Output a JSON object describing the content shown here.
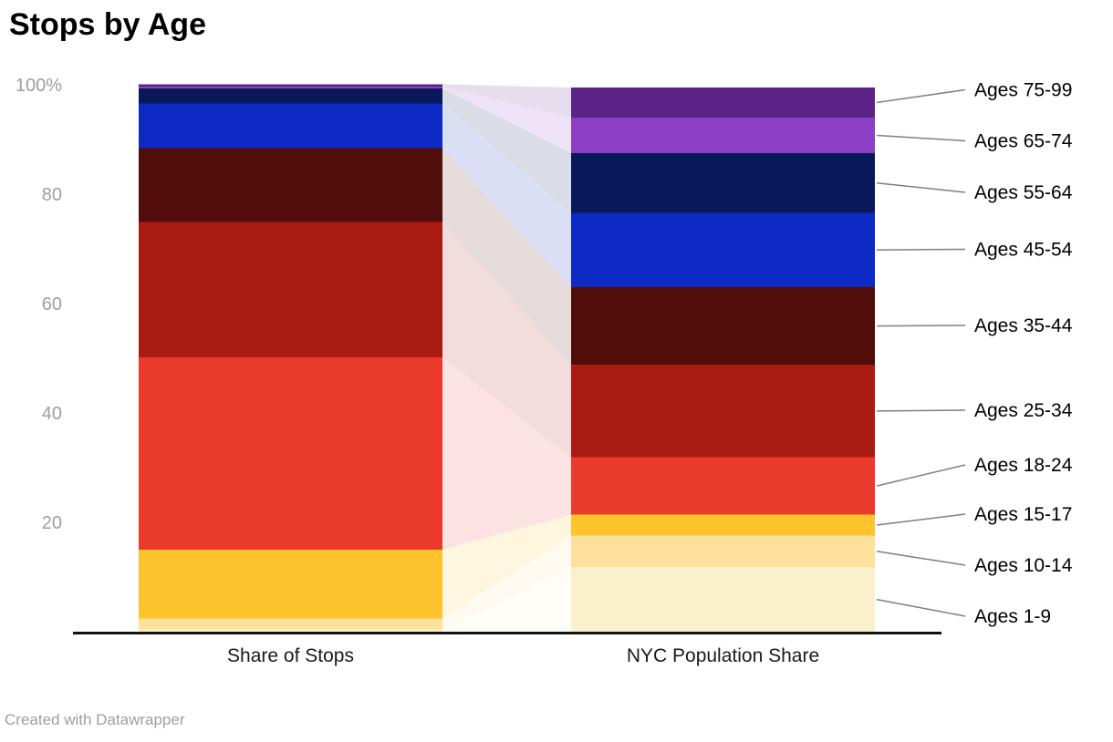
{
  "title": "Stops by Age",
  "footer": "Created with Datawrapper",
  "colors": {
    "axis_line": "#111111",
    "tick_label": "#9e9e9e",
    "column_label": "#1a1a1a",
    "category_label": "#000000",
    "connector": "#7f7f7f",
    "background": "#ffffff"
  },
  "chart_data": {
    "type": "bar",
    "subtype": "stacked-columns-with-flows",
    "title": "Stops by Age",
    "columns": [
      "Share of Stops",
      "NYC Population Share"
    ],
    "categories": [
      "Ages 1-9",
      "Ages 10-14",
      "Ages 15-17",
      "Ages 18-24",
      "Ages 25-34",
      "Ages 35-44",
      "Ages 45-54",
      "Ages 55-64",
      "Ages 65-74",
      "Ages 75-99"
    ],
    "category_colors": [
      "#faf0cb",
      "#fde099",
      "#fdc32d",
      "#e93a2c",
      "#aa1b11",
      "#500d09",
      "#0d2ac4",
      "#091859",
      "#8c3fc5",
      "#5b2387"
    ],
    "series": [
      {
        "name": "Share of Stops",
        "values": [
          0.4,
          2.0,
          12.6,
          35.2,
          24.7,
          13.5,
          8.2,
          2.7,
          0.4,
          0.4
        ]
      },
      {
        "name": "NYC Population Share",
        "values": [
          11.8,
          5.8,
          3.8,
          10.5,
          16.9,
          14.2,
          13.6,
          10.9,
          6.5,
          5.5
        ]
      }
    ],
    "ylim": [
      0,
      100
    ],
    "y_ticks": [
      {
        "value": 100,
        "label": "100%"
      },
      {
        "value": 80,
        "label": "80"
      },
      {
        "value": 60,
        "label": "60"
      },
      {
        "value": 40,
        "label": "40"
      },
      {
        "value": 20,
        "label": "20"
      }
    ],
    "grid": false,
    "legend_position": "right-connected-labels",
    "flow_opacity": 0.15
  }
}
